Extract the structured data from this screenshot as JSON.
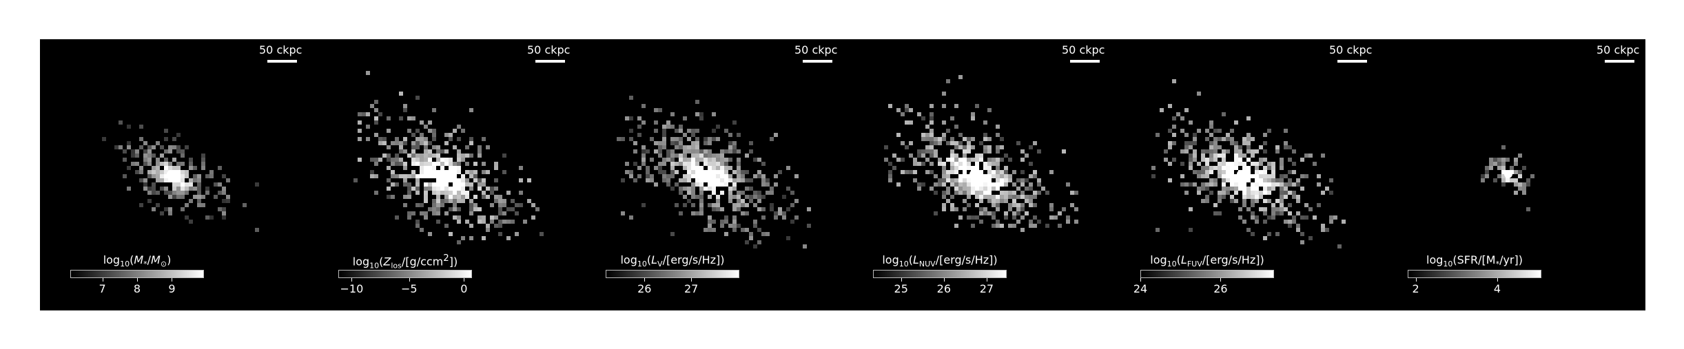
{
  "scale_bar_text": "50 ckpc",
  "panels": [
    {
      "id": "stellar-mass",
      "brightness": 0.75,
      "colorbar": {
        "title_html": "log<sub>10</sub>(<i>M</i><sub>*</sub>/<i>M</i><sub>⊙</sub>)",
        "ticks": [
          {
            "label": "7",
            "frac": 0.24
          },
          {
            "label": "8",
            "frac": 0.5
          },
          {
            "label": "9",
            "frac": 0.76
          }
        ]
      }
    },
    {
      "id": "metallicity",
      "brightness": 1.0,
      "colorbar": {
        "title_html": "log<sub>10</sub>(<i>Z</i><sub>los</sub>/[g/ccm<sup>2</sup>])",
        "ticks": [
          {
            "label": "−10",
            "frac": 0.1
          },
          {
            "label": "−5",
            "frac": 0.53
          },
          {
            "label": "0",
            "frac": 0.94
          }
        ]
      }
    },
    {
      "id": "lum-v",
      "brightness": 0.85,
      "colorbar": {
        "title_html": "log<sub>10</sub>(<i>L</i><sub>V</sub>/[erg/s/Hz])",
        "ticks": [
          {
            "label": "26",
            "frac": 0.29
          },
          {
            "label": "27",
            "frac": 0.64
          }
        ]
      }
    },
    {
      "id": "lum-nuv",
      "brightness": 1.0,
      "colorbar": {
        "title_html": "log<sub>10</sub>(<i>L</i><sub>NUV</sub>/[erg/s/Hz])",
        "ticks": [
          {
            "label": "25",
            "frac": 0.21
          },
          {
            "label": "26",
            "frac": 0.53
          },
          {
            "label": "27",
            "frac": 0.85
          }
        ]
      }
    },
    {
      "id": "lum-fuv",
      "brightness": 1.0,
      "colorbar": {
        "title_html": "log<sub>10</sub>(<i>L</i><sub>FUV</sub>/[erg/s/Hz])",
        "ticks": [
          {
            "label": "24",
            "frac": 0.0
          },
          {
            "label": "26",
            "frac": 0.6
          }
        ]
      }
    },
    {
      "id": "sfr",
      "brightness": 0.9,
      "colorbar": {
        "title_html": "log<sub>10</sub>(SFR/[M<sub>*</sub>/yr])",
        "ticks": [
          {
            "label": "2",
            "frac": 0.06
          },
          {
            "label": "4",
            "frac": 0.67
          }
        ]
      }
    }
  ]
}
